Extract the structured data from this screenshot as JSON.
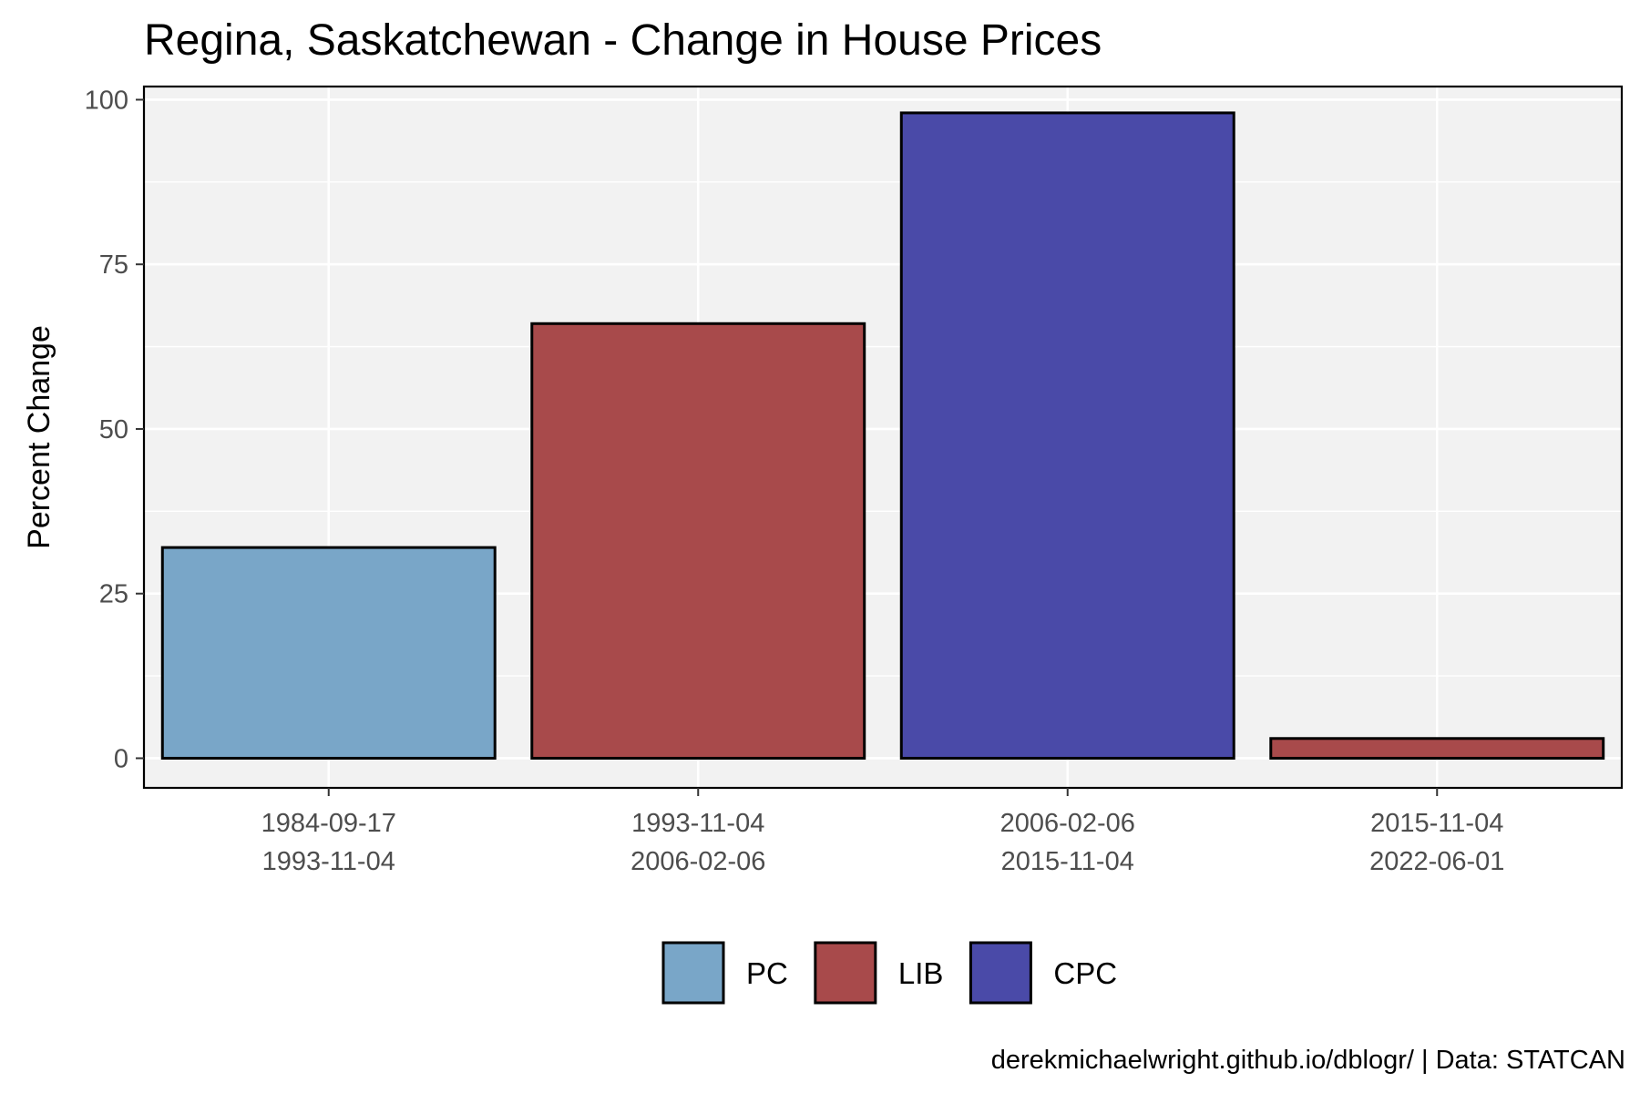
{
  "chart_data": {
    "type": "bar",
    "title": "Regina, Saskatchewan - Change in House Prices",
    "xlabel": "",
    "ylabel": "Percent Change",
    "caption": "derekmichaelwright.github.io/dblogr/ | Data: STATCAN",
    "categories": [
      [
        "1984-09-17",
        "1993-11-04"
      ],
      [
        "1993-11-04",
        "2006-02-06"
      ],
      [
        "2006-02-06",
        "2015-11-04"
      ],
      [
        "2015-11-04",
        "2022-06-01"
      ]
    ],
    "values": [
      32,
      66,
      98,
      3
    ],
    "parties": [
      "PC",
      "LIB",
      "CPC",
      "LIB"
    ],
    "ylim": [
      -4.5,
      102
    ],
    "yticks": [
      0,
      25,
      50,
      75,
      100
    ],
    "grid": true,
    "legend_position": "bottom",
    "legend": [
      {
        "label": "PC",
        "color": "#79a6c8"
      },
      {
        "label": "LIB",
        "color": "#a84a4b"
      },
      {
        "label": "CPC",
        "color": "#4a4aa8"
      }
    ],
    "colors": {
      "panel_background": "#f2f2f2",
      "grid": "#ffffff",
      "border": "#000000"
    }
  }
}
